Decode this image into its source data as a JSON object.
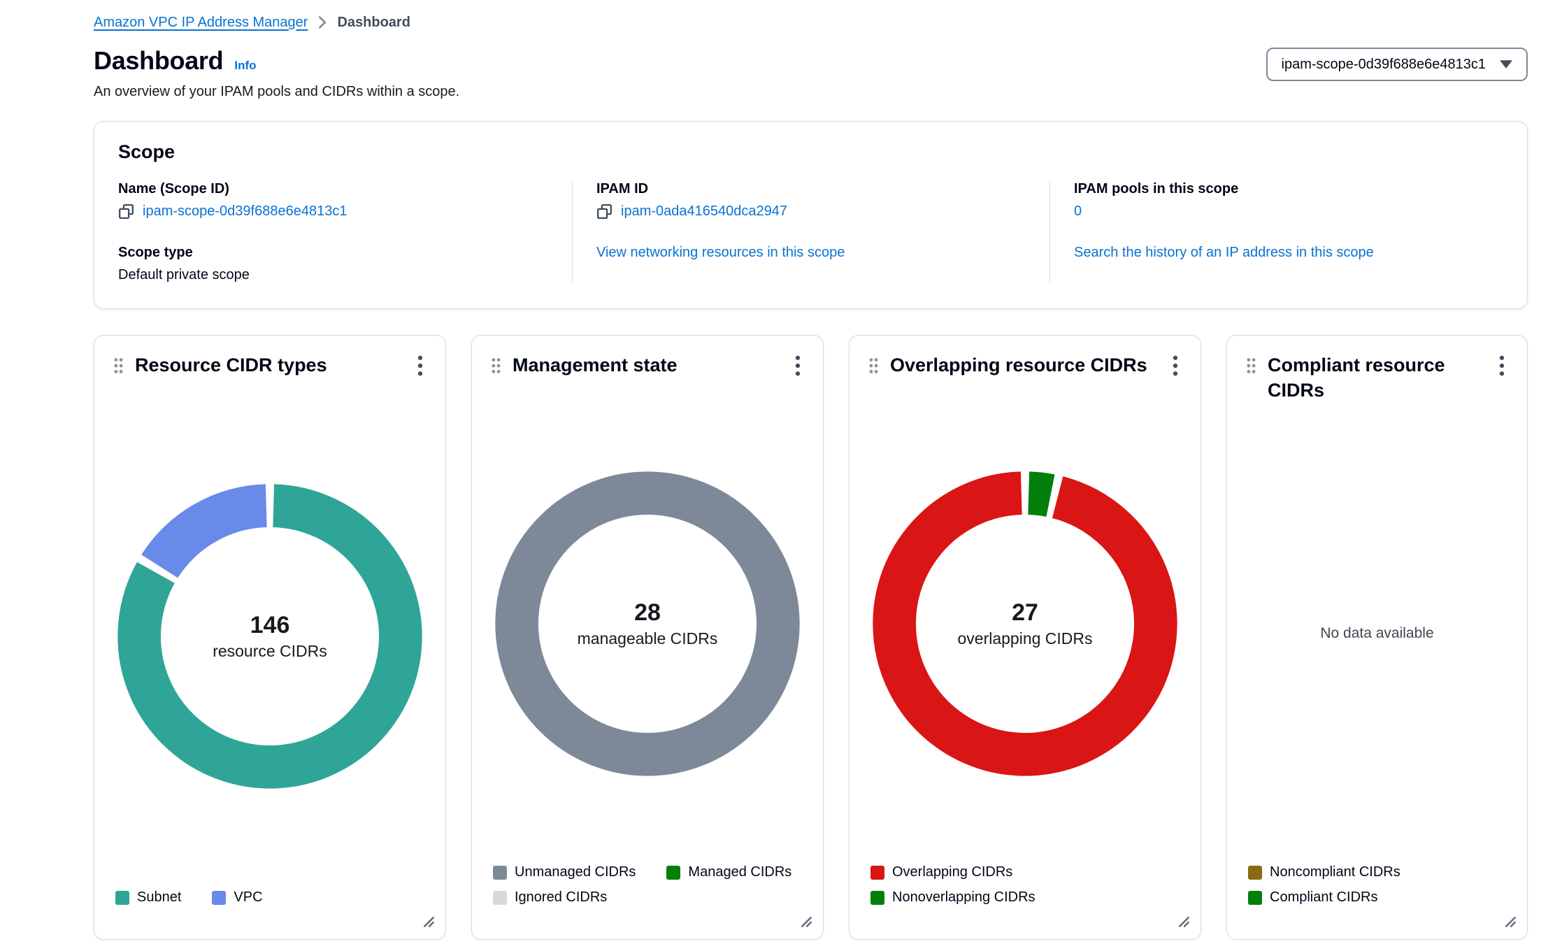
{
  "breadcrumb": {
    "link": "Amazon VPC IP Address Manager",
    "current": "Dashboard"
  },
  "header": {
    "title": "Dashboard",
    "info": "Info",
    "subtitle": "An overview of your IPAM pools and CIDRs within a scope.",
    "scope_selector_value": "ipam-scope-0d39f688e6e4813c1"
  },
  "scope": {
    "title": "Scope",
    "name_label": "Name (Scope ID)",
    "name_value": "ipam-scope-0d39f688e6e4813c1",
    "scope_type_label": "Scope type",
    "scope_type_value": "Default private scope",
    "ipam_id_label": "IPAM ID",
    "ipam_id_value": "ipam-0ada416540dca2947",
    "view_resources_link": "View networking resources in this scope",
    "pools_label": "IPAM pools in this scope",
    "pools_value": "0",
    "search_history_link": "Search the history of an IP address in this scope"
  },
  "widgets": [
    {
      "title": "Resource CIDR types",
      "center_value": "146",
      "center_label": "resource CIDRs",
      "chart": {
        "segments": [
          {
            "label": "Subnet",
            "value": 122,
            "color": "#2ea597"
          },
          {
            "label": "VPC",
            "value": 24,
            "color": "#688ae8"
          }
        ]
      },
      "legend": [
        {
          "label": "Subnet",
          "color": "#2ea597"
        },
        {
          "label": "VPC",
          "color": "#688ae8"
        }
      ]
    },
    {
      "title": "Management state",
      "center_value": "28",
      "center_label": "manageable CIDRs",
      "chart": {
        "segments": [
          {
            "label": "Unmanaged CIDRs",
            "value": 28,
            "color": "#7d8998"
          },
          {
            "label": "Managed CIDRs",
            "value": 0,
            "color": "#037f0c"
          },
          {
            "label": "Ignored CIDRs",
            "value": 0,
            "color": "#d5dbdb"
          }
        ]
      },
      "legend": [
        {
          "label": "Unmanaged CIDRs",
          "color": "#7d8998"
        },
        {
          "label": "Managed CIDRs",
          "color": "#037f0c"
        },
        {
          "label": "Ignored CIDRs",
          "color": "#d5dbdb"
        }
      ]
    },
    {
      "title": "Overlapping resource CIDRs",
      "center_value": "27",
      "center_label": "overlapping CIDRs",
      "chart": {
        "segments": [
          {
            "label": "Nonoverlapping CIDRs",
            "value": 1,
            "color": "#037f0c"
          },
          {
            "label": "Overlapping CIDRs",
            "value": 27,
            "color": "#d91515"
          }
        ]
      },
      "legend": [
        {
          "label": "Overlapping CIDRs",
          "color": "#d91515"
        },
        {
          "label": "Nonoverlapping CIDRs",
          "color": "#037f0c"
        }
      ]
    },
    {
      "title": "Compliant resource CIDRs",
      "no_data": "No data available",
      "legend": [
        {
          "label": "Noncompliant CIDRs",
          "color": "#8a6b0f"
        },
        {
          "label": "Compliant CIDRs",
          "color": "#037f0c"
        }
      ]
    }
  ],
  "chart_data": [
    {
      "type": "pie",
      "title": "Resource CIDR types",
      "donut_center": {
        "value": 146,
        "label": "resource CIDRs"
      },
      "categories": [
        "Subnet",
        "VPC"
      ],
      "values": [
        122,
        24
      ],
      "colors": [
        "#2ea597",
        "#688ae8"
      ],
      "note": "center total 146 shown; per-segment values estimated from arc angles"
    },
    {
      "type": "pie",
      "title": "Management state",
      "donut_center": {
        "value": 28,
        "label": "manageable CIDRs"
      },
      "categories": [
        "Unmanaged CIDRs",
        "Managed CIDRs",
        "Ignored CIDRs"
      ],
      "values": [
        28,
        0,
        0
      ],
      "colors": [
        "#7d8998",
        "#037f0c",
        "#d5dbdb"
      ]
    },
    {
      "type": "pie",
      "title": "Overlapping resource CIDRs",
      "donut_center": {
        "value": 27,
        "label": "overlapping CIDRs"
      },
      "categories": [
        "Nonoverlapping CIDRs",
        "Overlapping CIDRs"
      ],
      "values": [
        1,
        27
      ],
      "colors": [
        "#037f0c",
        "#d91515"
      ],
      "note": "small green segment estimated ~1 vs 27 overlapping"
    },
    {
      "type": "pie",
      "title": "Compliant resource CIDRs",
      "categories": [
        "Noncompliant CIDRs",
        "Compliant CIDRs"
      ],
      "values": [
        null,
        null
      ],
      "no_data": "No data available"
    }
  ]
}
